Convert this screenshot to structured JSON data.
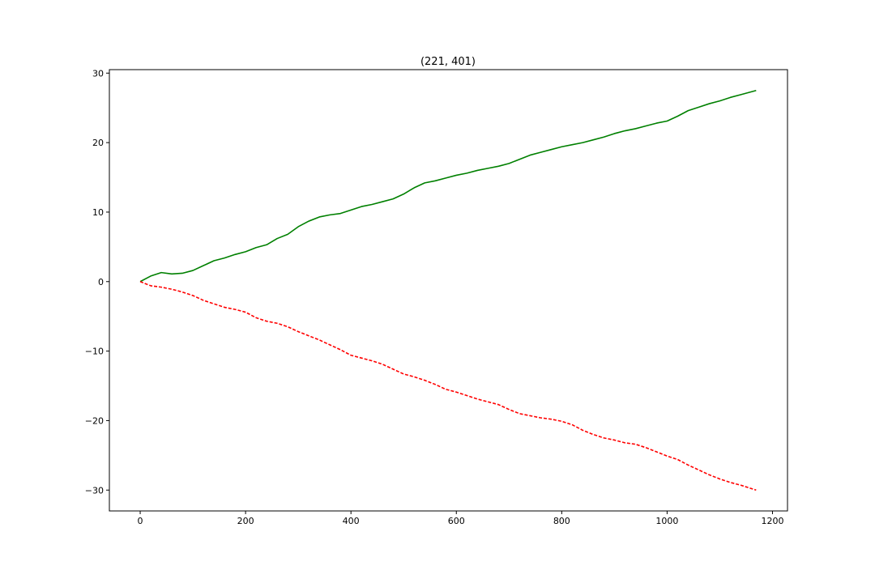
{
  "chart_data": {
    "type": "line",
    "title": "(221, 401)",
    "xlabel": "",
    "ylabel": "",
    "xlim": [
      -58.5,
      1228.5
    ],
    "ylim": [
      -33,
      30.5
    ],
    "xticks": [
      0,
      200,
      400,
      600,
      800,
      1000,
      1200
    ],
    "yticks": [
      -30,
      -20,
      -10,
      0,
      10,
      20,
      30
    ],
    "xtick_labels": [
      "0",
      "200",
      "400",
      "600",
      "800",
      "1000",
      "1200"
    ],
    "ytick_labels": [
      "−30",
      "−20",
      "−10",
      "0",
      "10",
      "20",
      "30"
    ],
    "grid": false,
    "series": [
      {
        "color": "#008000",
        "style": "solid",
        "x": [
          0,
          20,
          40,
          60,
          80,
          100,
          120,
          140,
          160,
          180,
          200,
          220,
          240,
          260,
          280,
          300,
          320,
          340,
          360,
          380,
          400,
          420,
          440,
          460,
          480,
          500,
          520,
          540,
          560,
          580,
          600,
          620,
          640,
          660,
          680,
          700,
          720,
          740,
          760,
          780,
          800,
          820,
          840,
          860,
          880,
          900,
          920,
          940,
          960,
          980,
          1000,
          1020,
          1040,
          1060,
          1080,
          1100,
          1120,
          1140,
          1169
        ],
        "y": [
          0,
          0.8,
          1.3,
          1.1,
          1.2,
          1.6,
          2.3,
          3.0,
          3.4,
          3.9,
          4.3,
          4.9,
          5.3,
          6.2,
          6.8,
          7.9,
          8.7,
          9.3,
          9.6,
          9.8,
          10.3,
          10.8,
          11.1,
          11.5,
          11.9,
          12.6,
          13.5,
          14.2,
          14.5,
          14.9,
          15.3,
          15.6,
          16.0,
          16.3,
          16.6,
          17.0,
          17.6,
          18.2,
          18.6,
          19.0,
          19.4,
          19.7,
          20.0,
          20.4,
          20.8,
          21.3,
          21.7,
          22.0,
          22.4,
          22.8,
          23.1,
          23.8,
          24.6,
          25.1,
          25.6,
          26.0,
          26.5,
          26.9,
          27.5
        ]
      },
      {
        "color": "#ff0000",
        "style": "dashed",
        "x": [
          0,
          20,
          40,
          60,
          80,
          100,
          120,
          140,
          160,
          180,
          200,
          220,
          240,
          260,
          280,
          300,
          320,
          340,
          360,
          380,
          400,
          420,
          440,
          460,
          480,
          500,
          520,
          540,
          560,
          580,
          600,
          620,
          640,
          660,
          680,
          700,
          720,
          740,
          760,
          780,
          800,
          820,
          840,
          860,
          880,
          900,
          920,
          940,
          960,
          980,
          1000,
          1020,
          1040,
          1060,
          1080,
          1100,
          1120,
          1140,
          1169
        ],
        "y": [
          0,
          -0.6,
          -0.8,
          -1.1,
          -1.5,
          -2.0,
          -2.7,
          -3.2,
          -3.7,
          -4.0,
          -4.4,
          -5.2,
          -5.7,
          -6.0,
          -6.5,
          -7.2,
          -7.8,
          -8.4,
          -9.1,
          -9.8,
          -10.6,
          -11.0,
          -11.4,
          -11.9,
          -12.6,
          -13.3,
          -13.7,
          -14.2,
          -14.8,
          -15.5,
          -15.9,
          -16.4,
          -16.9,
          -17.3,
          -17.7,
          -18.4,
          -19.0,
          -19.3,
          -19.6,
          -19.8,
          -20.1,
          -20.6,
          -21.4,
          -22.0,
          -22.5,
          -22.8,
          -23.2,
          -23.4,
          -23.9,
          -24.5,
          -25.1,
          -25.6,
          -26.4,
          -27.1,
          -27.8,
          -28.4,
          -28.9,
          -29.3,
          -30.0
        ]
      }
    ]
  }
}
